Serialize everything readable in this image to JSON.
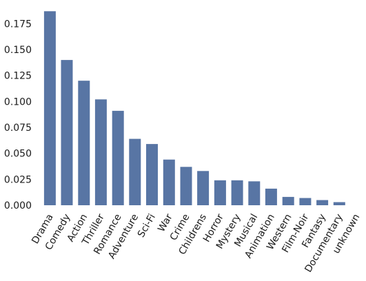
{
  "chart_data": {
    "type": "bar",
    "title": "",
    "xlabel": "",
    "ylabel": "",
    "categories": [
      "Drama",
      "Comedy",
      "Action",
      "Thriller",
      "Romance",
      "Adventure",
      "Sci-Fi",
      "War",
      "Crime",
      "Childrens",
      "Horror",
      "Mystery",
      "Musical",
      "Animation",
      "Western",
      "Film-Noir",
      "Fantasy",
      "Documentary",
      "unknown"
    ],
    "values": [
      0.187,
      0.14,
      0.12,
      0.102,
      0.091,
      0.064,
      0.059,
      0.044,
      0.037,
      0.033,
      0.024,
      0.024,
      0.023,
      0.016,
      0.008,
      0.007,
      0.005,
      0.003,
      0.0
    ],
    "yticks": [
      "0.000",
      "0.025",
      "0.050",
      "0.075",
      "0.100",
      "0.125",
      "0.150",
      "0.175"
    ],
    "ylim": [
      0,
      0.19
    ],
    "grid": false,
    "bar_color": "#5875a4"
  }
}
